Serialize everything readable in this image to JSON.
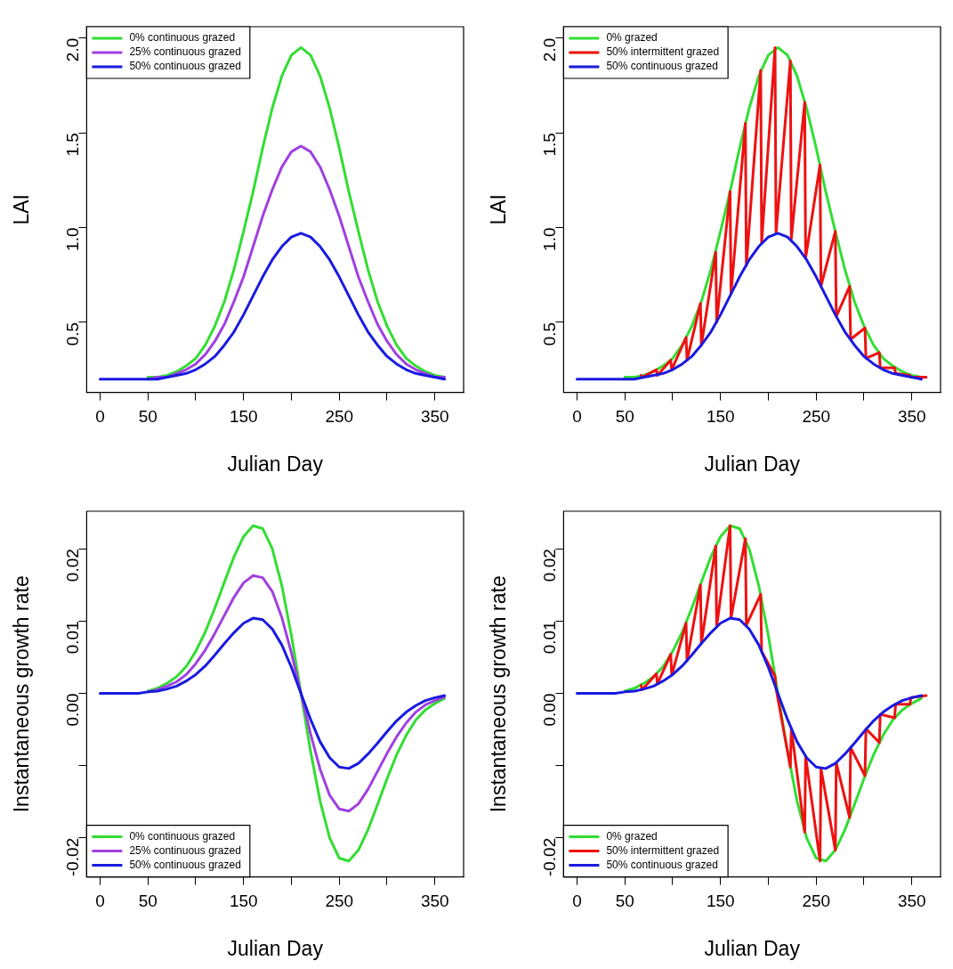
{
  "chart_data": [
    {
      "type": "line",
      "xlabel": "Julian Day",
      "ylabel": "LAI",
      "legend": "top left",
      "marker": "none",
      "line_style": "solid",
      "grid": false,
      "x": [
        0,
        10,
        20,
        30,
        40,
        50,
        60,
        70,
        80,
        90,
        100,
        110,
        120,
        130,
        140,
        150,
        160,
        170,
        180,
        190,
        200,
        210,
        220,
        230,
        240,
        250,
        260,
        270,
        280,
        290,
        300,
        310,
        320,
        330,
        340,
        350,
        360
      ],
      "xlim": [
        -14,
        380
      ],
      "xticks": [
        0,
        50,
        {
          "value": 100,
          "label": null
        },
        150,
        {
          "value": 200,
          "label": null
        },
        250,
        {
          "value": 300,
          "label": null
        },
        350
      ],
      "ylim": [
        0.13,
        2.06
      ],
      "yticks": [
        0.5,
        {
          "value": 1,
          "label": "1.0"
        },
        1.5,
        {
          "value": 2,
          "label": "2.0"
        }
      ],
      "series": [
        {
          "name": "0% continuous grazed",
          "color": "#33dd33",
          "values": [
            null,
            null,
            null,
            null,
            null,
            0.21,
            0.21,
            0.22,
            0.24,
            0.27,
            0.31,
            0.38,
            0.48,
            0.61,
            0.78,
            0.98,
            1.19,
            1.42,
            1.63,
            1.8,
            1.91,
            1.95,
            1.91,
            1.8,
            1.63,
            1.42,
            1.19,
            0.98,
            0.78,
            0.61,
            0.48,
            0.38,
            0.31,
            0.27,
            0.24,
            0.22,
            0.21
          ]
        },
        {
          "name": "25% continuous grazed",
          "color": "#a040e0",
          "values": [
            null,
            null,
            null,
            null,
            null,
            0.2,
            0.21,
            0.21,
            0.23,
            0.25,
            0.28,
            0.33,
            0.4,
            0.49,
            0.61,
            0.74,
            0.9,
            1.06,
            1.2,
            1.32,
            1.4,
            1.43,
            1.4,
            1.32,
            1.2,
            1.06,
            0.9,
            0.74,
            0.61,
            0.49,
            0.4,
            0.33,
            0.28,
            0.25,
            0.23,
            0.21,
            0.21
          ]
        },
        {
          "name": "50% continuous grazed",
          "color": "#1a1ae0",
          "values": [
            0.2,
            0.2,
            0.2,
            0.2,
            0.2,
            0.2,
            0.2,
            0.21,
            0.22,
            0.23,
            0.25,
            0.28,
            0.32,
            0.38,
            0.45,
            0.54,
            0.64,
            0.74,
            0.83,
            0.9,
            0.95,
            0.97,
            0.95,
            0.9,
            0.83,
            0.74,
            0.64,
            0.54,
            0.45,
            0.38,
            0.32,
            0.28,
            0.25,
            0.23,
            0.22,
            0.21,
            0.2
          ]
        }
      ]
    },
    {
      "type": "line",
      "xlabel": "Julian Day",
      "ylabel": "LAI",
      "legend": "top left",
      "marker": "none",
      "line_style": "solid",
      "grid": false,
      "x": [
        0,
        10,
        20,
        30,
        40,
        50,
        60,
        70,
        80,
        90,
        100,
        110,
        120,
        130,
        140,
        150,
        160,
        170,
        180,
        190,
        200,
        210,
        220,
        230,
        240,
        250,
        260,
        270,
        280,
        290,
        300,
        310,
        320,
        330,
        340,
        350,
        360
      ],
      "xlim": [
        -14,
        380
      ],
      "xticks": [
        0,
        50,
        {
          "value": 100,
          "label": null
        },
        150,
        {
          "value": 200,
          "label": null
        },
        250,
        {
          "value": 300,
          "label": null
        },
        350
      ],
      "ylim": [
        0.13,
        2.06
      ],
      "yticks": [
        0.5,
        {
          "value": 1,
          "label": "1.0"
        },
        1.5,
        {
          "value": 2,
          "label": "2.0"
        }
      ],
      "series": [
        {
          "name": "0% grazed",
          "color": "#33dd33",
          "values": [
            null,
            null,
            null,
            null,
            null,
            0.21,
            0.21,
            0.22,
            0.24,
            0.27,
            0.31,
            0.38,
            0.48,
            0.61,
            0.78,
            0.98,
            1.19,
            1.42,
            1.63,
            1.8,
            1.91,
            1.95,
            1.91,
            1.8,
            1.63,
            1.42,
            1.19,
            0.98,
            0.78,
            0.61,
            0.48,
            0.38,
            0.31,
            0.27,
            0.24,
            0.22,
            0.21
          ]
        },
        {
          "name": "50% intermittent grazed",
          "color": "#ee1111",
          "x": [
            67,
            68,
            83,
            84,
            98,
            99,
            114,
            115,
            129,
            130,
            145,
            146,
            160,
            161,
            176,
            177,
            192,
            193,
            207,
            208,
            223,
            224,
            238,
            239,
            254,
            255,
            270,
            271,
            285,
            286,
            301,
            302,
            316,
            317,
            332,
            333,
            348,
            349,
            365
          ],
          "values": [
            0.22,
            0.21,
            0.25,
            0.22,
            0.3,
            0.25,
            0.42,
            0.3,
            0.6,
            0.38,
            0.87,
            0.5,
            1.19,
            0.65,
            1.55,
            0.8,
            1.83,
            0.92,
            1.95,
            0.97,
            1.88,
            0.94,
            1.66,
            0.84,
            1.33,
            0.69,
            0.98,
            0.53,
            0.69,
            0.41,
            0.47,
            0.31,
            0.34,
            0.26,
            0.26,
            0.23,
            0.22,
            0.21,
            0.21
          ]
        },
        {
          "name": "50% continuous grazed",
          "color": "#1a1ae0",
          "values": [
            0.2,
            0.2,
            0.2,
            0.2,
            0.2,
            0.2,
            0.2,
            0.21,
            0.22,
            0.23,
            0.25,
            0.28,
            0.32,
            0.38,
            0.45,
            0.54,
            0.64,
            0.74,
            0.83,
            0.9,
            0.95,
            0.97,
            0.95,
            0.9,
            0.83,
            0.74,
            0.64,
            0.54,
            0.45,
            0.38,
            0.32,
            0.28,
            0.25,
            0.23,
            0.22,
            0.21,
            0.2
          ]
        }
      ]
    },
    {
      "type": "line",
      "xlabel": "Julian Day",
      "ylabel": "Instantaneous growth rate",
      "legend": "bottom left",
      "marker": "none",
      "line_style": "solid",
      "grid": false,
      "x": [
        0,
        10,
        20,
        30,
        40,
        50,
        60,
        70,
        80,
        90,
        100,
        110,
        120,
        130,
        140,
        150,
        160,
        170,
        180,
        190,
        200,
        210,
        220,
        230,
        240,
        250,
        260,
        270,
        280,
        290,
        300,
        310,
        320,
        330,
        340,
        350,
        360
      ],
      "xlim": [
        -14,
        380
      ],
      "xticks": [
        0,
        50,
        {
          "value": 100,
          "label": null
        },
        150,
        {
          "value": 200,
          "label": null
        },
        250,
        {
          "value": 300,
          "label": null
        },
        350
      ],
      "ylim": [
        -0.0254,
        0.0252
      ],
      "yticks": [
        -0.02,
        {
          "value": -0.01,
          "label": null
        },
        {
          "value": 0,
          "label": "0.00"
        },
        0.01,
        0.02
      ],
      "series": [
        {
          "name": "0% continuous grazed",
          "color": "#33dd33",
          "values": [
            null,
            null,
            null,
            null,
            null,
            0.0003,
            0.0007,
            0.0014,
            0.0023,
            0.0037,
            0.0058,
            0.0085,
            0.0118,
            0.0154,
            0.0189,
            0.0217,
            0.0232,
            0.0228,
            0.02,
            0.0149,
            0.008,
            0,
            -0.008,
            -0.0149,
            -0.02,
            -0.0228,
            -0.0232,
            -0.0217,
            -0.0189,
            -0.0154,
            -0.0118,
            -0.0085,
            -0.0058,
            -0.0037,
            -0.0023,
            -0.0014,
            -0.0007
          ]
        },
        {
          "name": "25% continuous grazed",
          "color": "#a040e0",
          "values": [
            null,
            null,
            null,
            null,
            null,
            0.0002,
            0.0005,
            0.001,
            0.0016,
            0.0026,
            0.0041,
            0.006,
            0.0083,
            0.0108,
            0.0133,
            0.0153,
            0.0163,
            0.016,
            0.0141,
            0.0105,
            0.0056,
            0,
            -0.0056,
            -0.0105,
            -0.0141,
            -0.016,
            -0.0163,
            -0.0153,
            -0.0133,
            -0.0108,
            -0.0083,
            -0.006,
            -0.0041,
            -0.0026,
            -0.0016,
            -0.001,
            -0.0005
          ]
        },
        {
          "name": "50% continuous grazed",
          "color": "#1a1ae0",
          "values": [
            0,
            0,
            0,
            0,
            0,
            0.0002,
            0.0003,
            0.0006,
            0.001,
            0.0017,
            0.0026,
            0.0038,
            0.0053,
            0.0069,
            0.0084,
            0.0097,
            0.0104,
            0.0102,
            0.0089,
            0.0067,
            0.0036,
            0,
            -0.0036,
            -0.0067,
            -0.0089,
            -0.0102,
            -0.0104,
            -0.0097,
            -0.0084,
            -0.0069,
            -0.0053,
            -0.0038,
            -0.0026,
            -0.0017,
            -0.001,
            -0.0006,
            -0.0003
          ]
        }
      ]
    },
    {
      "type": "line",
      "xlabel": "Julian Day",
      "ylabel": "Instantaneous growth rate",
      "legend": "bottom left",
      "marker": "none",
      "line_style": "solid",
      "grid": false,
      "x": [
        0,
        10,
        20,
        30,
        40,
        50,
        60,
        70,
        80,
        90,
        100,
        110,
        120,
        130,
        140,
        150,
        160,
        170,
        180,
        190,
        200,
        210,
        220,
        230,
        240,
        250,
        260,
        270,
        280,
        290,
        300,
        310,
        320,
        330,
        340,
        350,
        360
      ],
      "xlim": [
        -14,
        380
      ],
      "xticks": [
        0,
        50,
        {
          "value": 100,
          "label": null
        },
        150,
        {
          "value": 200,
          "label": null
        },
        250,
        {
          "value": 300,
          "label": null
        },
        350
      ],
      "ylim": [
        -0.0254,
        0.0252
      ],
      "yticks": [
        -0.02,
        {
          "value": -0.01,
          "label": null
        },
        {
          "value": 0,
          "label": "0.00"
        },
        0.01,
        0.02
      ],
      "series": [
        {
          "name": "0% grazed",
          "color": "#33dd33",
          "values": [
            null,
            null,
            null,
            null,
            null,
            0.0003,
            0.0007,
            0.0014,
            0.0023,
            0.0037,
            0.0058,
            0.0085,
            0.0118,
            0.0154,
            0.0189,
            0.0217,
            0.0232,
            0.0228,
            0.02,
            0.0149,
            0.008,
            0,
            -0.008,
            -0.0149,
            -0.02,
            -0.0228,
            -0.0232,
            -0.0217,
            -0.0189,
            -0.0154,
            -0.0118,
            -0.0085,
            -0.0058,
            -0.0037,
            -0.0023,
            -0.0014,
            -0.0007
          ]
        },
        {
          "name": "50% intermittent grazed",
          "color": "#ee1111",
          "x": [
            67,
            68,
            83,
            84,
            98,
            99,
            114,
            115,
            129,
            130,
            145,
            146,
            160,
            161,
            176,
            177,
            192,
            193,
            207,
            208,
            223,
            224,
            238,
            239,
            254,
            255,
            270,
            271,
            285,
            286,
            301,
            302,
            316,
            317,
            332,
            333,
            348,
            349,
            365
          ],
          "values": [
            0.0011,
            0.0005,
            0.0027,
            0.0013,
            0.0054,
            0.0025,
            0.0097,
            0.0045,
            0.015,
            0.0069,
            0.0204,
            0.0092,
            0.0232,
            0.0104,
            0.0214,
            0.0094,
            0.0137,
            0.0058,
            0.0024,
            0.0007,
            -0.0102,
            -0.0049,
            -0.0192,
            -0.0087,
            -0.0232,
            -0.0104,
            -0.0217,
            -0.0096,
            -0.0172,
            -0.0075,
            -0.0114,
            -0.0049,
            -0.0068,
            -0.0029,
            -0.0034,
            -0.0015,
            -0.0015,
            -0.0006,
            -0.0003
          ]
        },
        {
          "name": "50% continuous grazed",
          "color": "#1a1ae0",
          "values": [
            0,
            0,
            0,
            0,
            0,
            0.0002,
            0.0003,
            0.0006,
            0.001,
            0.0017,
            0.0026,
            0.0038,
            0.0053,
            0.0069,
            0.0084,
            0.0097,
            0.0104,
            0.0102,
            0.0089,
            0.0067,
            0.0036,
            0,
            -0.0036,
            -0.0067,
            -0.0089,
            -0.0102,
            -0.0104,
            -0.0097,
            -0.0084,
            -0.0069,
            -0.0053,
            -0.0038,
            -0.0026,
            -0.0017,
            -0.001,
            -0.0006,
            -0.0003
          ]
        }
      ]
    }
  ]
}
